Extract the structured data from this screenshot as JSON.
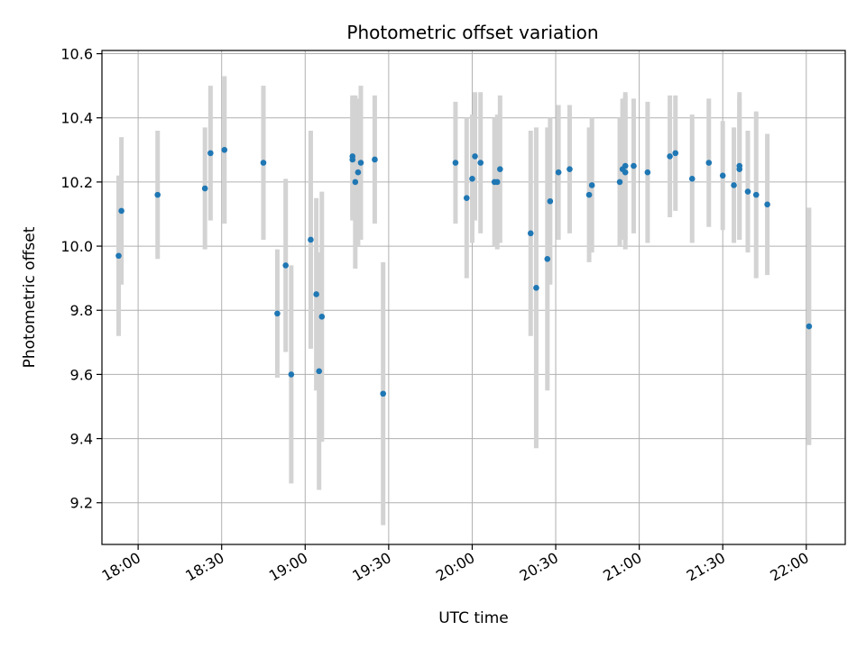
{
  "chart_data": {
    "type": "scatter",
    "title": "Photometric offset variation",
    "xlabel": "UTC time",
    "ylabel": "Photometric offset",
    "x_ticks": [
      "18:00",
      "18:30",
      "19:00",
      "19:30",
      "20:00",
      "20:30",
      "21:00",
      "21:30",
      "22:00"
    ],
    "y_ticks": [
      "9.2",
      "9.4",
      "9.6",
      "9.8",
      "10.0",
      "10.2",
      "10.4",
      "10.6"
    ],
    "xlim": [
      "17:47",
      "22:14"
    ],
    "ylim": [
      9.07,
      10.61
    ],
    "grid": true,
    "colors": {
      "point": "#1f77b4",
      "errorbar": "#d3d3d3",
      "grid": "#b0b0b0"
    },
    "points": [
      {
        "x": "17:53",
        "y": 9.97,
        "err": 0.25
      },
      {
        "x": "17:54",
        "y": 10.11,
        "err": 0.23
      },
      {
        "x": "18:07",
        "y": 10.16,
        "err": 0.2
      },
      {
        "x": "18:24",
        "y": 10.18,
        "err": 0.19
      },
      {
        "x": "18:26",
        "y": 10.29,
        "err": 0.21
      },
      {
        "x": "18:31",
        "y": 10.3,
        "err": 0.23
      },
      {
        "x": "18:45",
        "y": 10.26,
        "err": 0.24
      },
      {
        "x": "18:50",
        "y": 9.79,
        "err": 0.2
      },
      {
        "x": "18:53",
        "y": 9.94,
        "err": 0.27
      },
      {
        "x": "18:55",
        "y": 9.6,
        "err": 0.34
      },
      {
        "x": "19:02",
        "y": 10.02,
        "err": 0.34
      },
      {
        "x": "19:04",
        "y": 9.85,
        "err": 0.3
      },
      {
        "x": "19:05",
        "y": 9.61,
        "err": 0.37
      },
      {
        "x": "19:06",
        "y": 9.78,
        "err": 0.39
      },
      {
        "x": "19:17",
        "y": 10.28,
        "err": 0.19
      },
      {
        "x": "19:17",
        "y": 10.27,
        "err": 0.19
      },
      {
        "x": "19:18",
        "y": 10.2,
        "err": 0.27
      },
      {
        "x": "19:19",
        "y": 10.23,
        "err": 0.23
      },
      {
        "x": "19:20",
        "y": 10.26,
        "err": 0.24
      },
      {
        "x": "19:25",
        "y": 10.27,
        "err": 0.2
      },
      {
        "x": "19:28",
        "y": 9.54,
        "err": 0.41
      },
      {
        "x": "19:54",
        "y": 10.26,
        "err": 0.19
      },
      {
        "x": "19:58",
        "y": 10.15,
        "err": 0.25
      },
      {
        "x": "20:00",
        "y": 10.21,
        "err": 0.2
      },
      {
        "x": "20:01",
        "y": 10.28,
        "err": 0.2
      },
      {
        "x": "20:03",
        "y": 10.26,
        "err": 0.22
      },
      {
        "x": "20:08",
        "y": 10.2,
        "err": 0.2
      },
      {
        "x": "20:09",
        "y": 10.2,
        "err": 0.21
      },
      {
        "x": "20:10",
        "y": 10.24,
        "err": 0.23
      },
      {
        "x": "20:21",
        "y": 10.04,
        "err": 0.32
      },
      {
        "x": "20:23",
        "y": 9.87,
        "err": 0.5
      },
      {
        "x": "20:27",
        "y": 9.96,
        "err": 0.41
      },
      {
        "x": "20:28",
        "y": 10.14,
        "err": 0.26
      },
      {
        "x": "20:31",
        "y": 10.23,
        "err": 0.21
      },
      {
        "x": "20:35",
        "y": 10.24,
        "err": 0.2
      },
      {
        "x": "20:42",
        "y": 10.16,
        "err": 0.21
      },
      {
        "x": "20:43",
        "y": 10.19,
        "err": 0.21
      },
      {
        "x": "20:53",
        "y": 10.2,
        "err": 0.2
      },
      {
        "x": "20:54",
        "y": 10.24,
        "err": 0.22
      },
      {
        "x": "20:55",
        "y": 10.23,
        "err": 0.24
      },
      {
        "x": "20:55",
        "y": 10.25,
        "err": 0.23
      },
      {
        "x": "20:58",
        "y": 10.25,
        "err": 0.21
      },
      {
        "x": "21:03",
        "y": 10.23,
        "err": 0.22
      },
      {
        "x": "21:11",
        "y": 10.28,
        "err": 0.19
      },
      {
        "x": "21:13",
        "y": 10.29,
        "err": 0.18
      },
      {
        "x": "21:19",
        "y": 10.21,
        "err": 0.2
      },
      {
        "x": "21:25",
        "y": 10.26,
        "err": 0.2
      },
      {
        "x": "21:30",
        "y": 10.22,
        "err": 0.17
      },
      {
        "x": "21:34",
        "y": 10.19,
        "err": 0.18
      },
      {
        "x": "21:36",
        "y": 10.24,
        "err": 0.22
      },
      {
        "x": "21:36",
        "y": 10.25,
        "err": 0.23
      },
      {
        "x": "21:39",
        "y": 10.17,
        "err": 0.19
      },
      {
        "x": "21:42",
        "y": 10.16,
        "err": 0.26
      },
      {
        "x": "21:46",
        "y": 10.13,
        "err": 0.22
      },
      {
        "x": "22:01",
        "y": 9.75,
        "err": 0.37
      }
    ]
  }
}
